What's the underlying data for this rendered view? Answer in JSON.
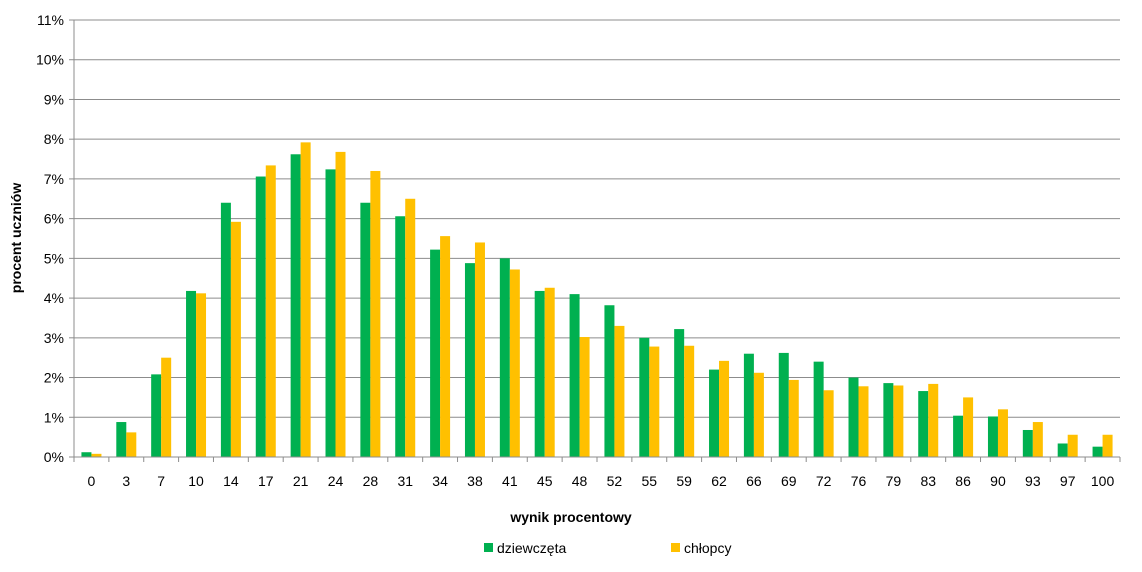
{
  "chart_data": {
    "type": "bar",
    "xlabel": "wynik procentowy",
    "ylabel": "procent  uczniów",
    "ylim": [
      0,
      11
    ],
    "yticks": [
      "0%",
      "1%",
      "2%",
      "3%",
      "4%",
      "5%",
      "6%",
      "7%",
      "8%",
      "9%",
      "10%",
      "11%"
    ],
    "grid": "horizontal",
    "legend_position": "bottom",
    "categories": [
      "0",
      "3",
      "7",
      "10",
      "14",
      "17",
      "21",
      "24",
      "28",
      "31",
      "34",
      "38",
      "41",
      "45",
      "48",
      "52",
      "55",
      "59",
      "62",
      "66",
      "69",
      "72",
      "76",
      "79",
      "83",
      "86",
      "90",
      "93",
      "97",
      "100"
    ],
    "series": [
      {
        "name": "dziewczęta",
        "color": "#00B050",
        "values": [
          0.12,
          0.88,
          2.08,
          4.18,
          6.4,
          7.06,
          7.62,
          7.24,
          6.4,
          6.06,
          5.22,
          4.88,
          5.0,
          4.18,
          4.1,
          3.82,
          3.0,
          3.22,
          2.2,
          2.6,
          2.62,
          2.4,
          2.0,
          1.86,
          1.66,
          1.04,
          1.02,
          0.68,
          0.34,
          0.26
        ]
      },
      {
        "name": "chłopcy",
        "color": "#FFC000",
        "values": [
          0.08,
          0.62,
          2.5,
          4.12,
          5.92,
          7.34,
          7.92,
          7.68,
          7.2,
          6.5,
          5.56,
          5.4,
          4.72,
          4.26,
          3.02,
          3.3,
          2.78,
          2.8,
          2.42,
          2.12,
          1.94,
          1.68,
          1.78,
          1.8,
          1.84,
          1.5,
          1.2,
          0.88,
          0.56,
          0.56
        ]
      }
    ]
  }
}
